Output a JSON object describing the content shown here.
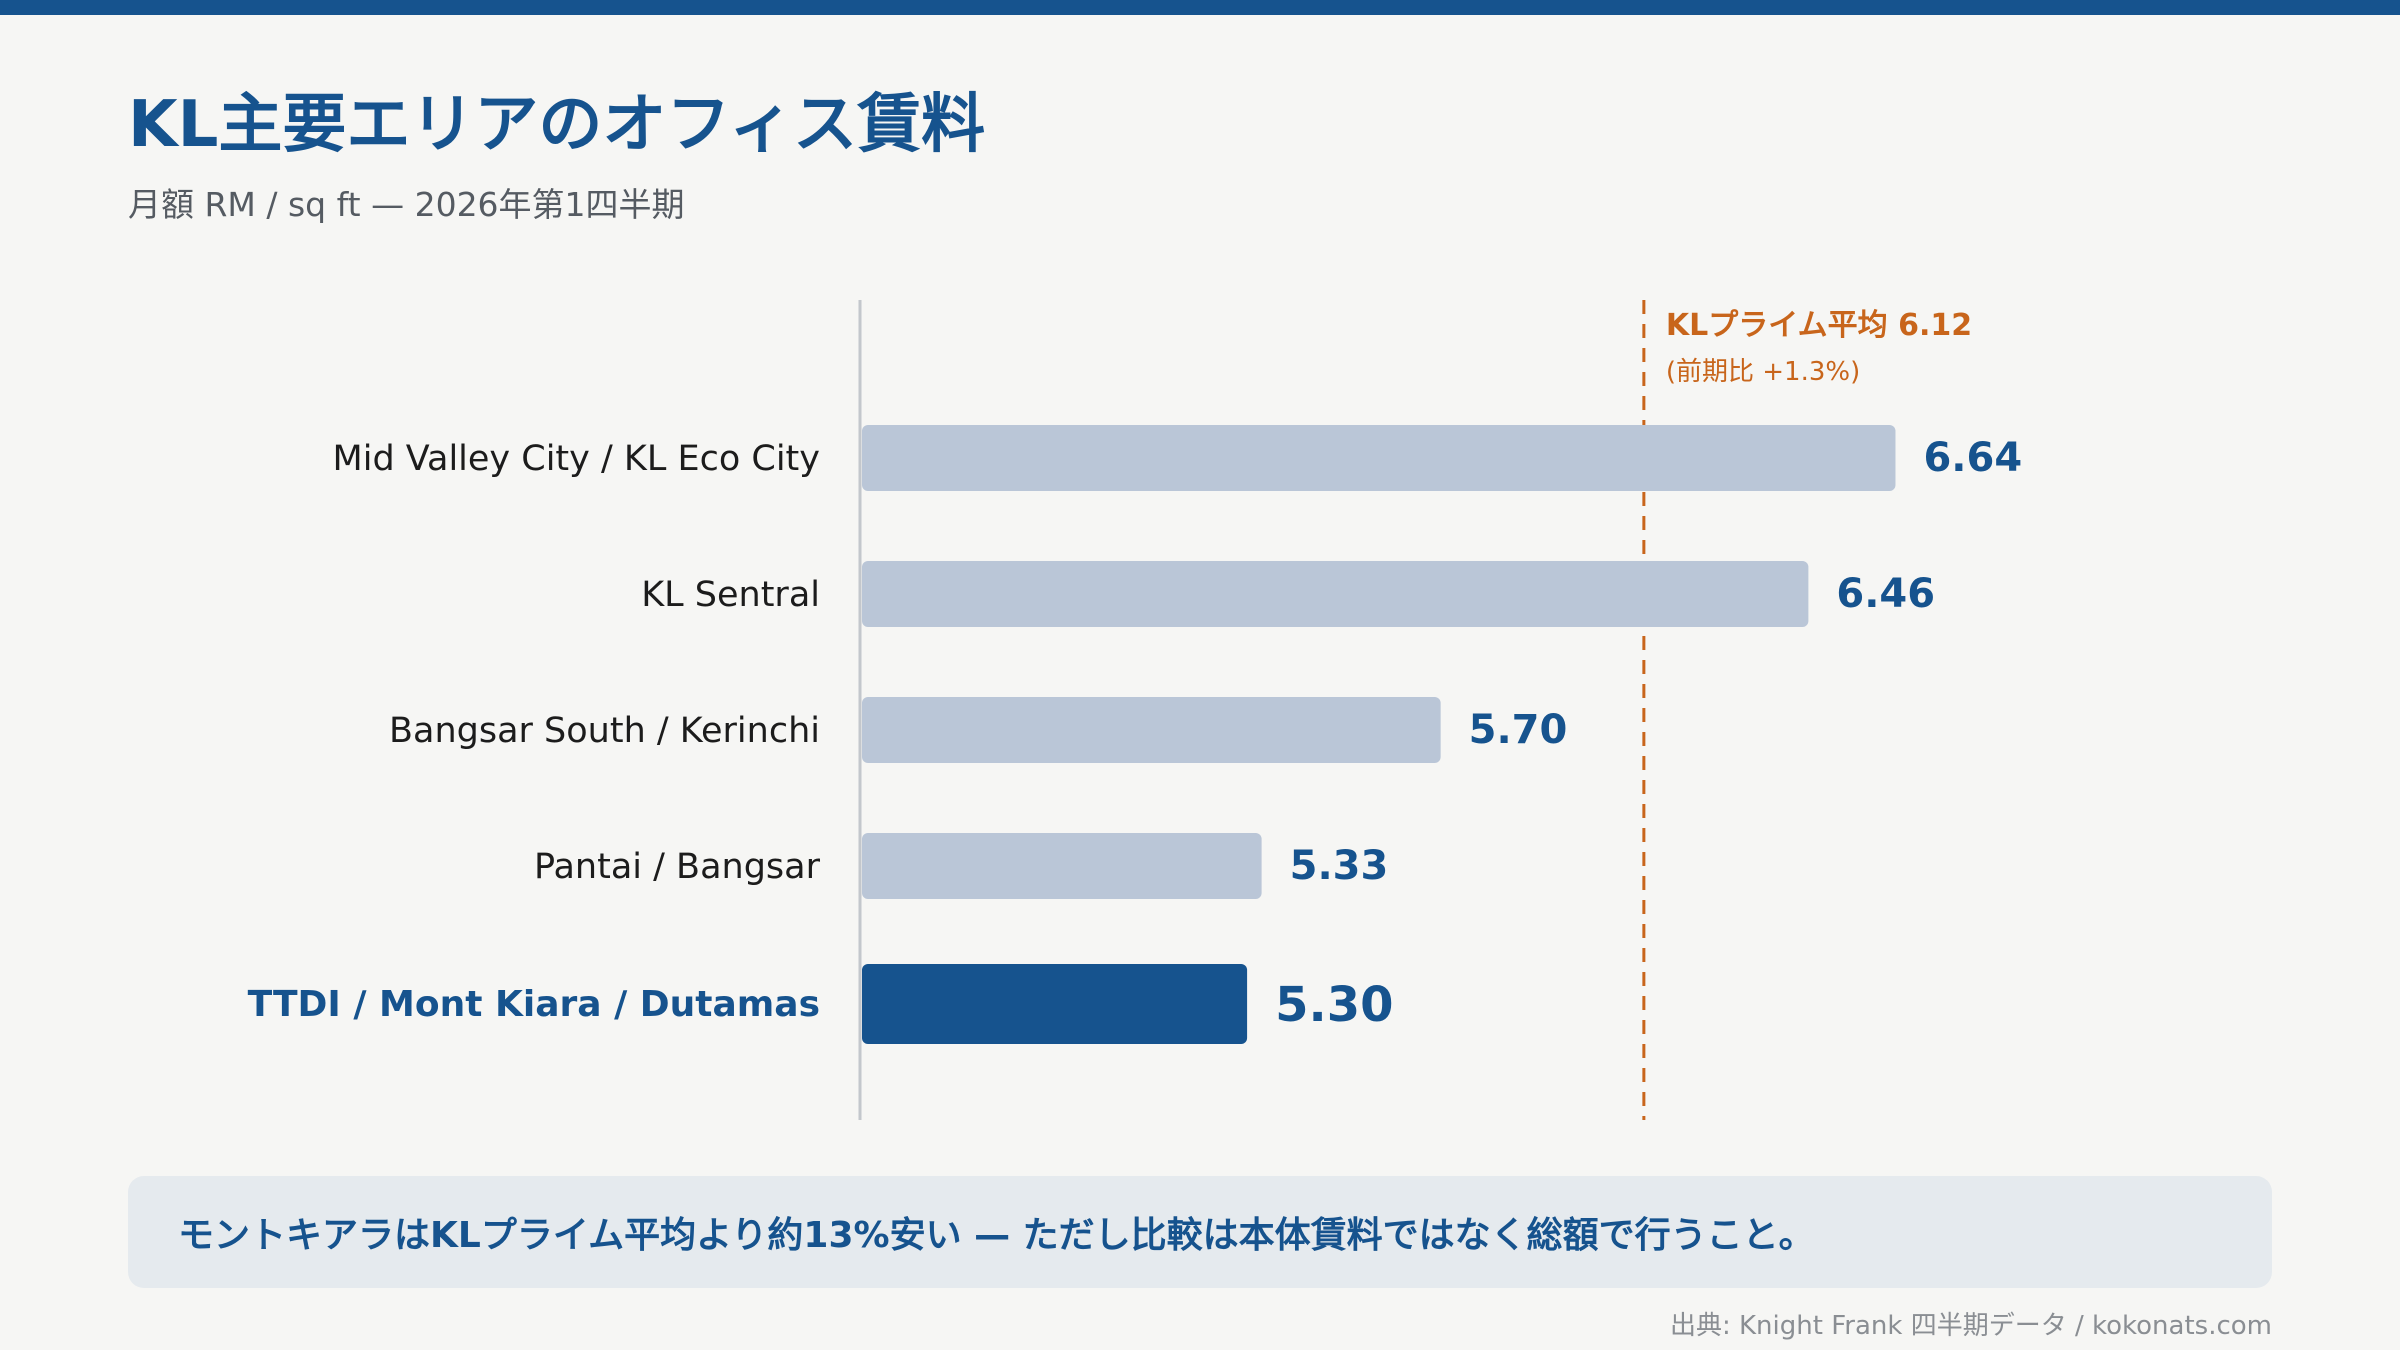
{
  "page": {
    "title": "KL主要エリアのオフィス賃料",
    "subtitle": "月額 RM / sq ft — 2026年第1四半期",
    "insight": "モントキアラはKLプライム平均より約13%安い — ただし比較は本体賃料ではなく総額で行うこと。",
    "source": "出典: Knight Frank 四半期データ / kokonats.com"
  },
  "colors": {
    "brand": "#16538e",
    "bar_default": "#bac6d7",
    "bar_highlight": "#16538e",
    "reference_line": "#c8651b",
    "axis": "#c3c7cc",
    "label_default": "#1c1c1c"
  },
  "chart_data": {
    "type": "bar",
    "orientation": "horizontal",
    "categories": [
      "Mid Valley City / KL Eco City",
      "KL Sentral",
      "Bangsar South / Kerinchi",
      "Pantai / Bangsar",
      "TTDI / Mont Kiara / Dutamas"
    ],
    "values": [
      6.64,
      6.46,
      5.7,
      5.33,
      5.3
    ],
    "value_labels": [
      "6.64",
      "6.46",
      "5.70",
      "5.33",
      "5.30"
    ],
    "highlight_index": 4,
    "xlim": [
      4.5,
      6.98
    ],
    "reference": {
      "value": 6.12,
      "label": "KLプライム平均 6.12",
      "sublabel": "(前期比 +1.3%)"
    },
    "title": "KL主要エリアのオフィス賃料",
    "xlabel": "",
    "ylabel": "",
    "grid": false,
    "legend": "none"
  }
}
